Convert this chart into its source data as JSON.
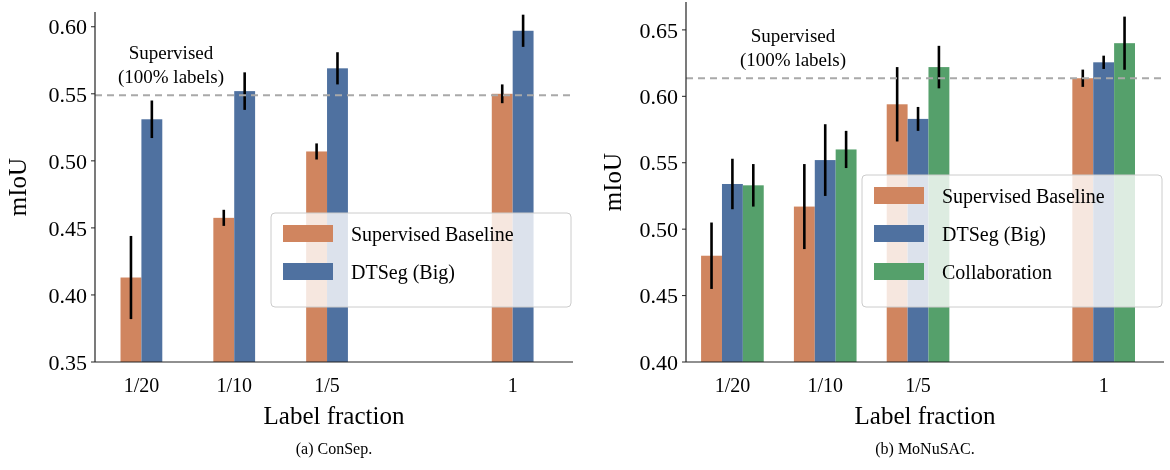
{
  "chart_data": [
    {
      "type": "bar",
      "categories": [
        "1/20",
        "1/10",
        "1/5",
        null,
        "1"
      ],
      "xlabel": "Label fraction",
      "ylabel": "mIoU",
      "ylim": [
        0.35,
        0.611
      ],
      "yticks": [
        {
          "value": 0.35,
          "label": "0.35"
        },
        {
          "value": 0.4,
          "label": "0.40"
        },
        {
          "value": 0.45,
          "label": "0.45"
        },
        {
          "value": 0.5,
          "label": "0.50"
        },
        {
          "value": 0.55,
          "label": "0.55"
        },
        {
          "value": 0.6,
          "label": "0.60"
        }
      ],
      "grid": false,
      "legend": "bottom right",
      "series": [
        {
          "name": "Supervised Baseline",
          "color": "#d0855f",
          "values": [
            0.413,
            0.4575,
            0.507,
            null,
            0.55
          ],
          "errors": [
            0.031,
            0.006,
            0.006,
            null,
            0.007
          ]
        },
        {
          "name": "DTSeg (Big)",
          "color": "#4f71a0",
          "values": [
            0.531,
            0.552,
            0.569,
            null,
            0.597
          ],
          "errors": [
            0.014,
            0.014,
            0.012,
            null,
            0.012
          ]
        }
      ],
      "ref_lines": [
        {
          "axis": "y",
          "value": 0.549,
          "label": "Supervised\n(100% labels)",
          "color": "#a9a9a9",
          "line_style": "dashed"
        }
      ],
      "annotations": [
        "(a) ConSep."
      ]
    },
    {
      "type": "bar",
      "categories": [
        "1/20",
        "1/10",
        "1/5",
        null,
        "1"
      ],
      "xlabel": "Label fraction",
      "ylabel": "mIoU",
      "ylim": [
        0.4,
        0.671
      ],
      "yticks": [
        {
          "value": 0.4,
          "label": "0.40"
        },
        {
          "value": 0.45,
          "label": "0.45"
        },
        {
          "value": 0.5,
          "label": "0.50"
        },
        {
          "value": 0.55,
          "label": "0.55"
        },
        {
          "value": 0.6,
          "label": "0.60"
        },
        {
          "value": 0.65,
          "label": "0.65"
        }
      ],
      "grid": false,
      "legend": "bottom right",
      "series": [
        {
          "name": "Supervised Baseline",
          "color": "#d0855f",
          "values": [
            0.48,
            0.517,
            0.594,
            null,
            0.6136
          ],
          "errors": [
            0.025,
            0.032,
            0.028,
            null,
            0.0065
          ]
        },
        {
          "name": "DTSeg (Big)",
          "color": "#4f71a0",
          "values": [
            0.534,
            0.552,
            0.583,
            null,
            0.6256
          ],
          "errors": [
            0.019,
            0.027,
            0.009,
            null,
            0.005
          ]
        },
        {
          "name": "Collaboration",
          "color": "#55a06b",
          "values": [
            0.533,
            0.56,
            0.622,
            null,
            0.64
          ],
          "errors": [
            0.016,
            0.014,
            0.016,
            null,
            0.02
          ]
        }
      ],
      "ref_lines": [
        {
          "axis": "y",
          "value": 0.6136,
          "label": "Supervised\n(100% labels)",
          "color": "#a9a9a9",
          "line_style": "dashed"
        }
      ],
      "annotations": [
        "(b) MoNuSAC."
      ]
    }
  ]
}
